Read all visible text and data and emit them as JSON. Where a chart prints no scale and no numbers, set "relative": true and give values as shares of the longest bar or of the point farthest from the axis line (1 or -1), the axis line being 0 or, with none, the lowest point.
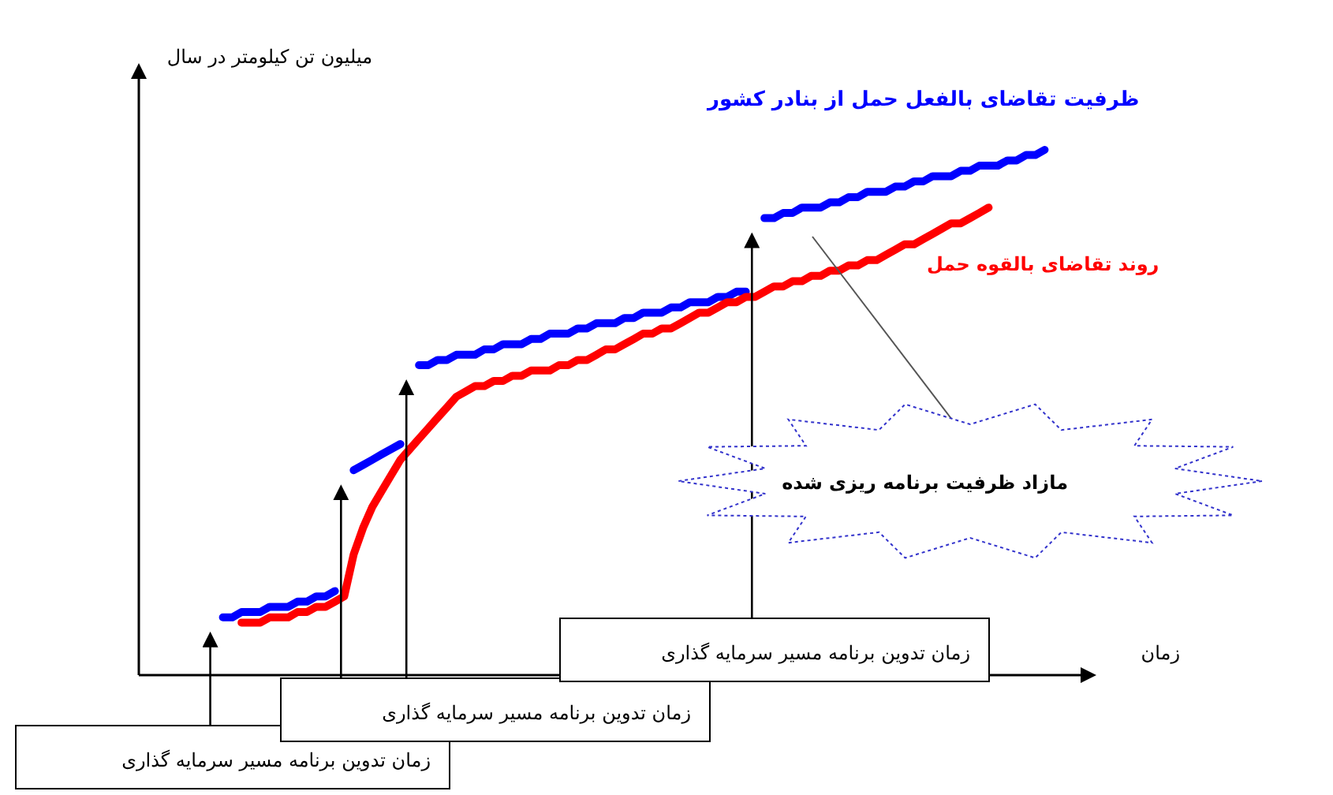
{
  "chart_data": {
    "type": "line",
    "relative": true,
    "xlabel": "زمان",
    "ylabel": "میلیون تن کیلومتر در سال",
    "categories": [
      null,
      null,
      null,
      null,
      null,
      null,
      null,
      null,
      null,
      null,
      null,
      null,
      null,
      null,
      null,
      null,
      null,
      null,
      null,
      null,
      null,
      null,
      null,
      null,
      null,
      null,
      null,
      null,
      null,
      null,
      null,
      null,
      null,
      null,
      null,
      null,
      null,
      null,
      null,
      null,
      null,
      null,
      null,
      null,
      null,
      null,
      null,
      null,
      null,
      null,
      null,
      null,
      null,
      null,
      null,
      null,
      null,
      null,
      null,
      null,
      null,
      null,
      null,
      null,
      null,
      null,
      null,
      null,
      null,
      null,
      null,
      null,
      null,
      null,
      null,
      null,
      null,
      null,
      null,
      null,
      null,
      null,
      null,
      null,
      null,
      null,
      null,
      null,
      null,
      null,
      null,
      null,
      null,
      null,
      null,
      null,
      null,
      null,
      null,
      null,
      null
    ],
    "series": [
      {
        "name": "ظرفیت تقاضای بالفعل حمل از بنادر کشور",
        "color": "#0000ff",
        "values": [
          null,
          null,
          null,
          null,
          null,
          null,
          null,
          null,
          null,
          0.11,
          0.11,
          0.12,
          0.12,
          0.12,
          0.13,
          0.13,
          0.13,
          0.14,
          0.14,
          0.15,
          0.15,
          0.16,
          null,
          0.39,
          0.4,
          0.41,
          0.42,
          0.43,
          0.44,
          null,
          0.59,
          0.59,
          0.6,
          0.6,
          0.61,
          0.61,
          0.61,
          0.62,
          0.62,
          0.63,
          0.63,
          0.63,
          0.64,
          0.64,
          0.65,
          0.65,
          0.65,
          0.66,
          0.66,
          0.67,
          0.67,
          0.67,
          0.68,
          0.68,
          0.69,
          0.69,
          0.69,
          0.7,
          0.7,
          0.71,
          0.71,
          0.71,
          0.72,
          0.72,
          0.73,
          0.73,
          null,
          0.87,
          0.87,
          0.88,
          0.88,
          0.89,
          0.89,
          0.89,
          0.9,
          0.9,
          0.91,
          0.91,
          0.92,
          0.92,
          0.92,
          0.93,
          0.93,
          0.94,
          0.94,
          0.95,
          0.95,
          0.95,
          0.96,
          0.96,
          0.97,
          0.97,
          0.97,
          0.98,
          0.98,
          0.99,
          0.99,
          1,
          null,
          null,
          null
        ]
      },
      {
        "name": "روند تقاضای بالقوه حمل",
        "color": "#ff0000",
        "values": [
          null,
          null,
          null,
          null,
          null,
          null,
          null,
          null,
          null,
          null,
          null,
          0.1,
          0.1,
          0.1,
          0.11,
          0.11,
          0.11,
          0.12,
          0.12,
          0.13,
          0.13,
          0.14,
          0.15,
          0.23,
          0.28,
          0.32,
          0.35,
          0.38,
          0.41,
          0.43,
          0.45,
          0.47,
          0.49,
          0.51,
          0.53,
          0.54,
          0.55,
          0.55,
          0.56,
          0.56,
          0.57,
          0.57,
          0.58,
          0.58,
          0.58,
          0.59,
          0.59,
          0.6,
          0.6,
          0.61,
          0.62,
          0.62,
          0.63,
          0.64,
          0.65,
          0.65,
          0.66,
          0.66,
          0.67,
          0.68,
          0.69,
          0.69,
          0.7,
          0.71,
          0.71,
          0.72,
          0.72,
          0.73,
          0.74,
          0.74,
          0.75,
          0.75,
          0.76,
          0.76,
          0.77,
          0.77,
          0.78,
          0.78,
          0.79,
          0.79,
          0.8,
          0.81,
          0.82,
          0.82,
          0.83,
          0.84,
          0.85,
          0.86,
          0.86,
          0.87,
          0.88,
          0.89,
          null,
          null,
          null,
          null,
          null,
          null,
          null,
          null,
          null
        ]
      }
    ],
    "annotations": [
      "مازاد ظرفیت برنامه ریزی شده",
      "زمان تدوین برنامه مسیر سرمایه گذاری",
      "زمان تدوین برنامه مسیر سرمایه گذاری",
      "زمان تدوین برنامه مسیر سرمایه گذاری"
    ]
  }
}
